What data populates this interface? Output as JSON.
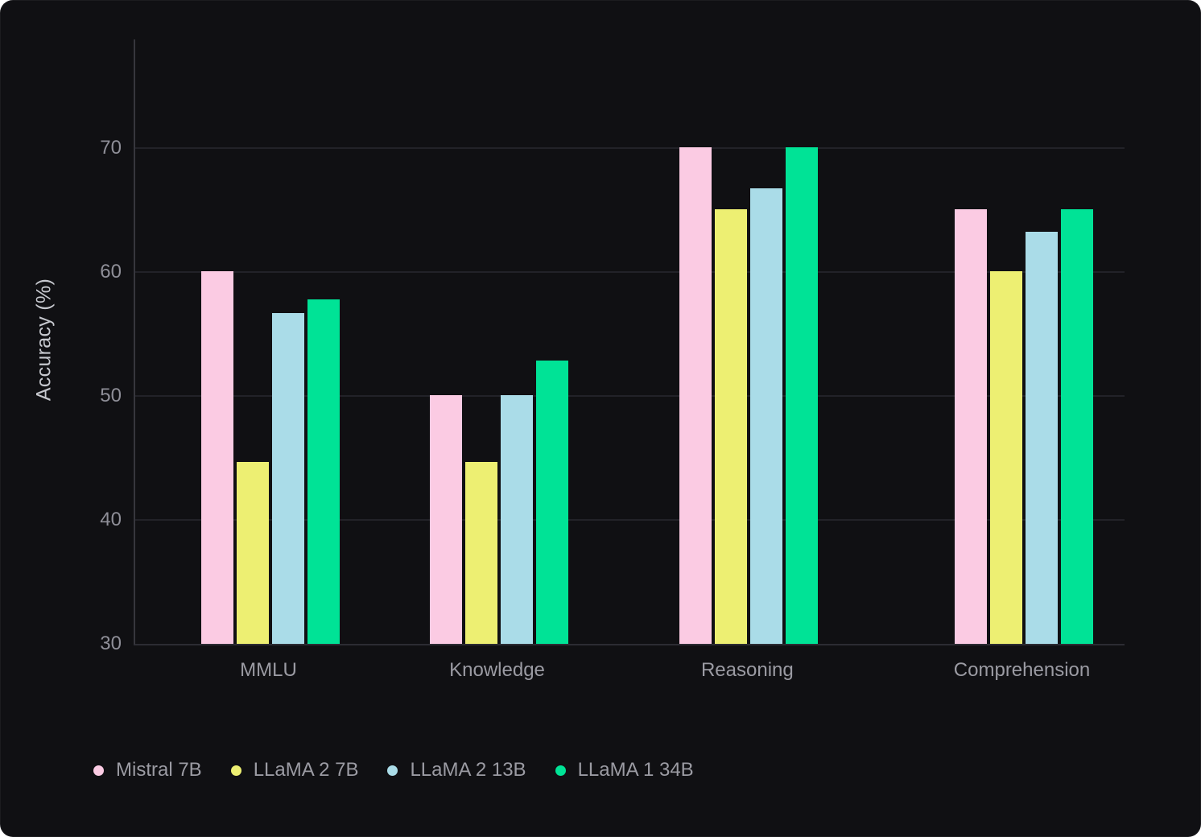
{
  "chart_data": {
    "type": "bar",
    "title": "",
    "xlabel": "",
    "ylabel": "Accuracy (%)",
    "categories": [
      "MMLU",
      "Knowledge",
      "Reasoning",
      "Comprehension"
    ],
    "series": [
      {
        "name": "Mistral 7B",
        "color": "#fbcbe3",
        "values": [
          60.1,
          50.1,
          70.1,
          65.1
        ]
      },
      {
        "name": "LLaMA 2 7B",
        "color": "#edef72",
        "values": [
          44.7,
          44.7,
          65.1,
          60.1
        ]
      },
      {
        "name": "LLaMA 2 13B",
        "color": "#aadce8",
        "values": [
          56.7,
          50.1,
          66.8,
          63.3
        ]
      },
      {
        "name": "LLaMA 1 34B",
        "color": "#00e396",
        "values": [
          57.8,
          52.9,
          70.1,
          65.1
        ]
      }
    ],
    "yticks": [
      30,
      40,
      50,
      60,
      70
    ],
    "ylim": [
      30,
      78.8
    ],
    "grid": true,
    "legend_position": "bottom-left",
    "group_centers_pct": [
      13.63,
      36.74,
      62.03,
      89.79
    ],
    "colors": {
      "background": "#101013",
      "gridline": "#222228",
      "axis_line": "#36363d",
      "tick_text": "#8f8f98",
      "category_text": "#9b9ba3",
      "legend_text": "#9b9ba3",
      "axis_title_text": "#c6c8ce"
    }
  }
}
